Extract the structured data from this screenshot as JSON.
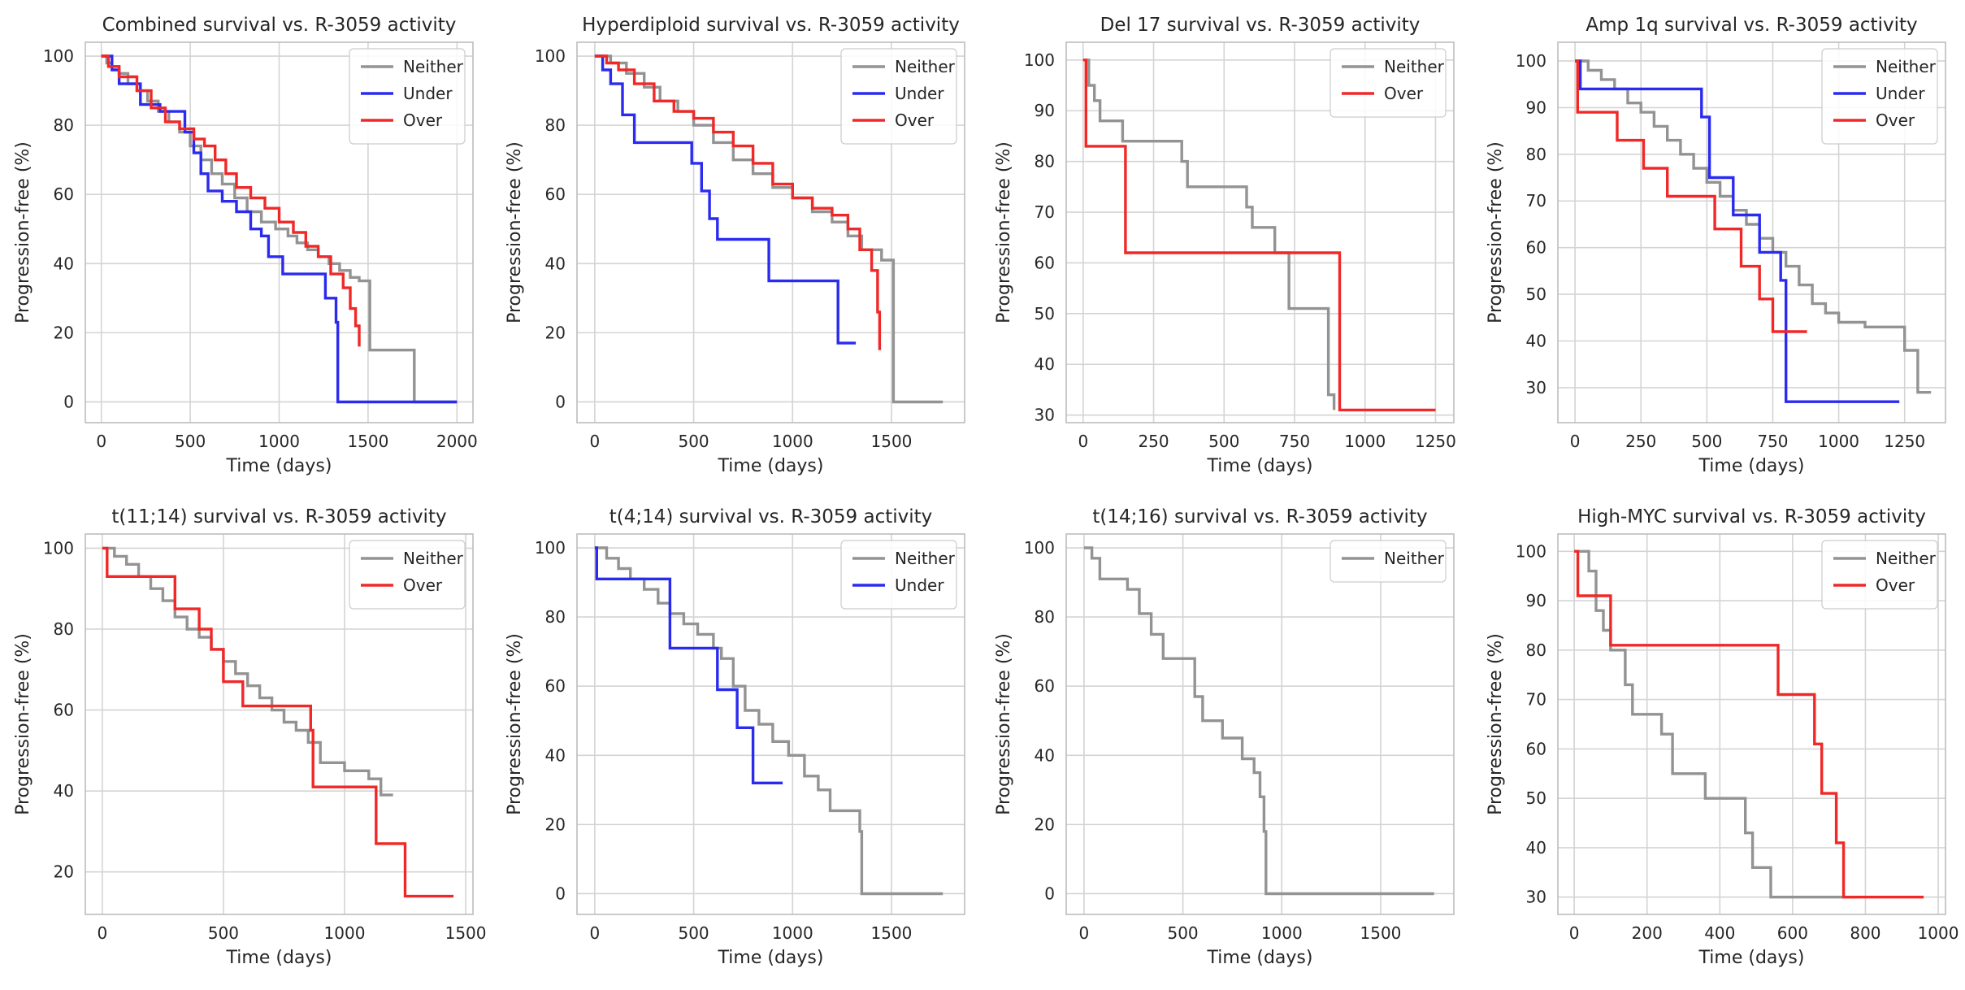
{
  "colors": {
    "Neither": "#939393",
    "Under": "#2b2bf0",
    "Over": "#f02828",
    "grid": "#d4d4d4",
    "frame": "#bdbdbd"
  },
  "chart_data": [
    {
      "type": "line",
      "title": "Combined survival vs. R-3059 activity",
      "xlabel": "Time (days)",
      "ylabel": "Progression-free (%)",
      "xlim": [
        -90,
        2090
      ],
      "ylim": [
        -6,
        104
      ],
      "xticks": [
        0,
        500,
        1000,
        1500,
        2000
      ],
      "yticks": [
        0,
        20,
        40,
        60,
        80,
        100
      ],
      "legend": [
        "Neither",
        "Under",
        "Over"
      ],
      "series": [
        {
          "name": "Neither",
          "x": [
            0,
            30,
            60,
            100,
            150,
            200,
            260,
            320,
            380,
            440,
            500,
            560,
            620,
            680,
            750,
            820,
            900,
            980,
            1050,
            1100,
            1160,
            1220,
            1280,
            1340,
            1400,
            1450,
            1500,
            1510,
            1750,
            1760,
            2000
          ],
          "y": [
            100,
            98,
            97,
            95,
            92,
            90,
            87,
            84,
            81,
            78,
            74,
            70,
            66,
            63,
            59,
            55,
            52,
            50,
            48,
            46,
            44,
            42,
            40,
            38,
            36,
            35,
            35,
            15,
            15,
            0,
            0
          ]
        },
        {
          "name": "Under",
          "x": [
            0,
            60,
            100,
            220,
            270,
            330,
            380,
            470,
            520,
            560,
            600,
            680,
            760,
            840,
            900,
            940,
            1020,
            1100,
            1220,
            1260,
            1320,
            1330,
            2000
          ],
          "y": [
            100,
            96,
            92,
            86,
            86,
            84,
            84,
            78,
            72,
            66,
            61,
            58,
            55,
            50,
            48,
            42,
            37,
            37,
            37,
            30,
            23,
            0,
            0
          ]
        },
        {
          "name": "Over",
          "x": [
            0,
            40,
            100,
            200,
            280,
            360,
            440,
            520,
            580,
            640,
            700,
            760,
            840,
            920,
            1000,
            1080,
            1150,
            1220,
            1290,
            1360,
            1400,
            1430,
            1450
          ],
          "y": [
            100,
            97,
            94,
            90,
            85,
            81,
            79,
            76,
            74,
            70,
            66,
            62,
            59,
            56,
            52,
            49,
            45,
            42,
            37,
            33,
            27,
            22,
            16
          ]
        }
      ]
    },
    {
      "type": "line",
      "title": "Hyperdiploid survival vs. R-3059 activity",
      "xlabel": "Time (days)",
      "ylabel": "Progression-free (%)",
      "xlim": [
        -90,
        1870
      ],
      "ylim": [
        -6,
        104
      ],
      "xticks": [
        0,
        500,
        1000,
        1500
      ],
      "yticks": [
        0,
        20,
        40,
        60,
        80,
        100
      ],
      "legend": [
        "Neither",
        "Under",
        "Over"
      ],
      "series": [
        {
          "name": "Neither",
          "x": [
            0,
            80,
            160,
            250,
            330,
            420,
            500,
            600,
            700,
            800,
            900,
            1000,
            1100,
            1200,
            1280,
            1350,
            1450,
            1500,
            1510,
            1760
          ],
          "y": [
            100,
            98,
            95,
            91,
            87,
            84,
            80,
            75,
            70,
            66,
            62,
            59,
            55,
            52,
            48,
            44,
            41,
            41,
            0,
            0
          ]
        },
        {
          "name": "Under",
          "x": [
            0,
            40,
            80,
            140,
            200,
            330,
            490,
            540,
            580,
            620,
            880,
            1230,
            1320
          ],
          "y": [
            100,
            96,
            92,
            83,
            75,
            75,
            69,
            61,
            53,
            47,
            35,
            17,
            17
          ]
        },
        {
          "name": "Over",
          "x": [
            0,
            60,
            120,
            200,
            300,
            400,
            500,
            600,
            700,
            800,
            900,
            1000,
            1100,
            1200,
            1280,
            1340,
            1400,
            1430,
            1440
          ],
          "y": [
            100,
            98,
            96,
            92,
            87,
            84,
            82,
            78,
            74,
            69,
            63,
            59,
            56,
            54,
            50,
            44,
            38,
            26,
            15
          ]
        }
      ]
    },
    {
      "type": "line",
      "title": "Del 17 survival vs. R-3059 activity",
      "xlabel": "Time (days)",
      "ylabel": "Progression-free (%)",
      "xlim": [
        -60,
        1315
      ],
      "ylim": [
        28.5,
        103.5
      ],
      "xticks": [
        0,
        250,
        500,
        750,
        1000,
        1250
      ],
      "yticks": [
        30,
        40,
        50,
        60,
        70,
        80,
        90,
        100
      ],
      "legend": [
        "Neither",
        "Over"
      ],
      "series": [
        {
          "name": "Neither",
          "x": [
            0,
            20,
            40,
            60,
            140,
            350,
            370,
            580,
            600,
            680,
            730,
            870,
            890
          ],
          "y": [
            100,
            95,
            92,
            88,
            84,
            80,
            75,
            71,
            67,
            62,
            51,
            34,
            31
          ]
        },
        {
          "name": "Over",
          "x": [
            0,
            10,
            140,
            150,
            900,
            910,
            1250
          ],
          "y": [
            100,
            83,
            83,
            62,
            62,
            31,
            31
          ]
        }
      ]
    },
    {
      "type": "line",
      "title": "Amp 1q survival vs. R-3059 activity",
      "xlabel": "Time (days)",
      "ylabel": "Progression-free (%)",
      "xlim": [
        -65,
        1405
      ],
      "ylim": [
        22.5,
        104
      ],
      "xticks": [
        0,
        250,
        500,
        750,
        1000,
        1250
      ],
      "yticks": [
        30,
        40,
        50,
        60,
        70,
        80,
        90,
        100
      ],
      "legend": [
        "Neither",
        "Under",
        "Over"
      ],
      "series": [
        {
          "name": "Neither",
          "x": [
            0,
            50,
            100,
            150,
            200,
            250,
            300,
            350,
            400,
            450,
            500,
            550,
            600,
            650,
            700,
            750,
            800,
            850,
            900,
            950,
            1000,
            1100,
            1250,
            1300,
            1350
          ],
          "y": [
            100,
            98,
            96,
            94,
            91,
            89,
            86,
            83,
            80,
            77,
            74,
            71,
            68,
            65,
            62,
            59,
            56,
            52,
            48,
            46,
            44,
            43,
            38,
            29,
            29
          ]
        },
        {
          "name": "Under",
          "x": [
            0,
            20,
            380,
            480,
            510,
            600,
            650,
            700,
            780,
            800,
            1230
          ],
          "y": [
            100,
            94,
            94,
            88,
            75,
            67,
            67,
            59,
            53,
            27,
            27
          ]
        },
        {
          "name": "Over",
          "x": [
            0,
            10,
            160,
            260,
            350,
            480,
            530,
            630,
            700,
            750,
            780,
            880
          ],
          "y": [
            100,
            89,
            83,
            77,
            71,
            71,
            64,
            56,
            49,
            42,
            42,
            42
          ]
        }
      ]
    },
    {
      "type": "line",
      "title": "t(11;14) survival vs. R-3059 activity",
      "xlabel": "Time (days)",
      "ylabel": "Progression-free (%)",
      "xlim": [
        -70,
        1530
      ],
      "ylim": [
        9.5,
        103.5
      ],
      "xticks": [
        0,
        500,
        1000,
        1500
      ],
      "yticks": [
        20,
        40,
        60,
        80,
        100
      ],
      "legend": [
        "Neither",
        "Over"
      ],
      "series": [
        {
          "name": "Neither",
          "x": [
            0,
            50,
            100,
            150,
            200,
            250,
            300,
            350,
            400,
            450,
            500,
            550,
            600,
            650,
            700,
            750,
            800,
            850,
            900,
            1000,
            1100,
            1150,
            1200
          ],
          "y": [
            100,
            98,
            96,
            93,
            90,
            87,
            83,
            80,
            78,
            75,
            72,
            69,
            66,
            63,
            60,
            57,
            55,
            52,
            47,
            45,
            43,
            39,
            39
          ]
        },
        {
          "name": "Over",
          "x": [
            0,
            20,
            250,
            300,
            400,
            450,
            500,
            580,
            860,
            870,
            1130,
            1250,
            1450
          ],
          "y": [
            100,
            93,
            93,
            85,
            80,
            75,
            67,
            61,
            55,
            41,
            27,
            14,
            14
          ]
        }
      ]
    },
    {
      "type": "line",
      "title": "t(4;14) survival vs. R-3059 activity",
      "xlabel": "Time (days)",
      "ylabel": "Progression-free (%)",
      "xlim": [
        -90,
        1870
      ],
      "ylim": [
        -6,
        104
      ],
      "xticks": [
        0,
        500,
        1000,
        1500
      ],
      "yticks": [
        0,
        20,
        40,
        60,
        80,
        100
      ],
      "legend": [
        "Neither",
        "Under"
      ],
      "series": [
        {
          "name": "Neither",
          "x": [
            0,
            60,
            120,
            180,
            250,
            320,
            380,
            450,
            520,
            600,
            640,
            700,
            760,
            830,
            900,
            980,
            1060,
            1130,
            1190,
            1340,
            1350,
            1760
          ],
          "y": [
            100,
            97,
            94,
            91,
            88,
            84,
            81,
            78,
            75,
            71,
            68,
            60,
            53,
            49,
            44,
            40,
            34,
            30,
            24,
            18,
            0,
            0
          ]
        },
        {
          "name": "Under",
          "x": [
            0,
            10,
            360,
            380,
            620,
            720,
            800,
            950
          ],
          "y": [
            100,
            91,
            91,
            71,
            59,
            48,
            32,
            32
          ]
        }
      ]
    },
    {
      "type": "line",
      "title": "t(14;16) survival vs. R-3059 activity",
      "xlabel": "Time (days)",
      "ylabel": "Progression-free (%)",
      "xlim": [
        -90,
        1870
      ],
      "ylim": [
        -6,
        104
      ],
      "xticks": [
        0,
        500,
        1000,
        1500
      ],
      "yticks": [
        0,
        20,
        40,
        60,
        80,
        100
      ],
      "legend": [
        "Neither"
      ],
      "series": [
        {
          "name": "Neither",
          "x": [
            0,
            40,
            80,
            220,
            280,
            340,
            400,
            530,
            560,
            600,
            700,
            800,
            860,
            890,
            910,
            920,
            1770
          ],
          "y": [
            100,
            97,
            91,
            88,
            81,
            75,
            68,
            68,
            57,
            50,
            45,
            39,
            35,
            28,
            18,
            0,
            0
          ]
        }
      ]
    },
    {
      "type": "line",
      "title": "High-MYC survival vs. R-3059 activity",
      "xlabel": "Time (days)",
      "ylabel": "Progression-free (%)",
      "xlim": [
        -45,
        1020
      ],
      "ylim": [
        26.5,
        103.5
      ],
      "xticks": [
        0,
        200,
        400,
        600,
        800,
        1000
      ],
      "yticks": [
        30,
        40,
        50,
        60,
        70,
        80,
        90,
        100
      ],
      "legend": [
        "Neither",
        "Over"
      ],
      "series": [
        {
          "name": "Neither",
          "x": [
            0,
            40,
            60,
            80,
            100,
            140,
            160,
            240,
            270,
            360,
            470,
            490,
            540,
            780
          ],
          "y": [
            100,
            96,
            88,
            84,
            80,
            73,
            67,
            63,
            55,
            50,
            43,
            36,
            30,
            30
          ]
        },
        {
          "name": "Over",
          "x": [
            0,
            10,
            100,
            560,
            660,
            680,
            720,
            740,
            960
          ],
          "y": [
            100,
            91,
            81,
            71,
            61,
            51,
            41,
            30,
            30
          ]
        }
      ]
    }
  ]
}
